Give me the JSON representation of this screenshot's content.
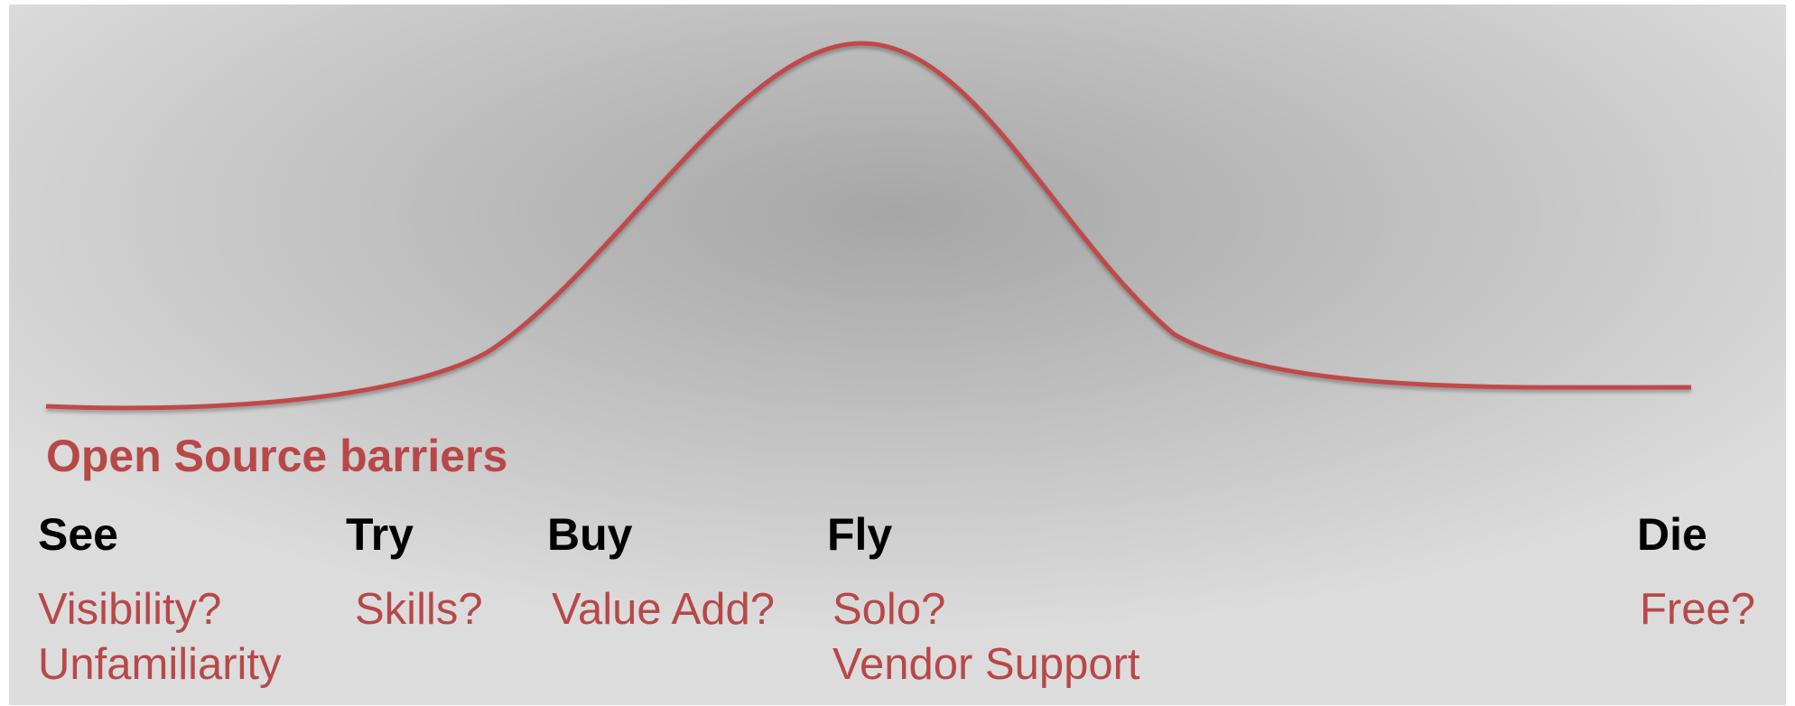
{
  "title": "Open Source barriers",
  "stages": [
    {
      "name": "See",
      "barriers": [
        "Visibility?",
        "Unfamiliarity"
      ]
    },
    {
      "name": "Try",
      "barriers": [
        "Skills?"
      ]
    },
    {
      "name": "Buy",
      "barriers": [
        "Value Add?"
      ]
    },
    {
      "name": "Fly",
      "barriers": [
        "Solo?",
        "Vendor Support"
      ]
    },
    {
      "name": "Die",
      "barriers": [
        "Free?"
      ]
    }
  ]
}
